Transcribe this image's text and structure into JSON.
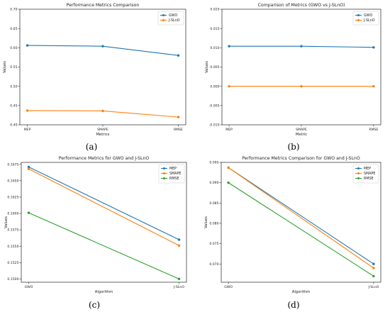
{
  "chart_data": [
    {
      "type": "line",
      "panel": "(a)",
      "title": "Performance Metrics Comparison",
      "xlabel": "Metrics",
      "ylabel": "Values",
      "categories": [
        "MEP",
        "SMAPE",
        "RMSE"
      ],
      "ylim": [
        0.4,
        0.7
      ],
      "yticks": [
        "0.40",
        "0.45",
        "0.50",
        "0.55",
        "0.60",
        "0.65",
        "0.70"
      ],
      "legend": "top-right",
      "grid": false,
      "series": [
        {
          "name": "GWO",
          "color": "#1f77b4",
          "values": [
            0.606,
            0.604,
            0.58
          ]
        },
        {
          "name": "J-SLnO",
          "color": "#ff7f0e",
          "values": [
            0.437,
            0.436,
            0.42
          ]
        }
      ]
    },
    {
      "type": "line",
      "panel": "(b)",
      "title": "Comparison of Metrics (GWO vs J-SLnO)",
      "xlabel": "Metric",
      "ylabel": "Values",
      "categories": [
        "MEP",
        "SMAPE",
        "RMSE"
      ],
      "ylim": [
        -0.01,
        0.02
      ],
      "yticks": [
        "-0.010",
        "-0.005",
        "0.000",
        "0.005",
        "0.010",
        "0.015",
        "0.020"
      ],
      "legend": "top-right",
      "grid": false,
      "series": [
        {
          "name": "GWO",
          "color": "#1f77b4",
          "values": [
            0.0104,
            0.0104,
            0.0101
          ]
        },
        {
          "name": "J-SLnO",
          "color": "#ff7f0e",
          "values": [
            0.0,
            0.0,
            0.0
          ]
        }
      ]
    },
    {
      "type": "line",
      "panel": "(c)",
      "title": "Performance Metrics for GWO and J-SLnO",
      "xlabel": "Algorithm",
      "ylabel": "Values",
      "categories": [
        "GWO",
        "J-SLnO"
      ],
      "ylim": [
        0.1495,
        0.1678
      ],
      "yticks": [
        "0.1500",
        "0.1525",
        "0.1550",
        "0.1575",
        "0.1600",
        "0.1625",
        "0.1650",
        "0.1675"
      ],
      "legend": "top-right",
      "grid": false,
      "series": [
        {
          "name": "MEP",
          "color": "#1f77b4",
          "values": [
            0.1671,
            0.156
          ]
        },
        {
          "name": "SMAPE",
          "color": "#ff7f0e",
          "values": [
            0.1668,
            0.1551
          ]
        },
        {
          "name": "RMSE",
          "color": "#2ca02c",
          "values": [
            0.1601,
            0.15
          ]
        }
      ]
    },
    {
      "type": "line",
      "panel": "(d)",
      "title": "Performance Metrics Comparison for GWO and J-SLnO",
      "xlabel": "Algorithm",
      "ylabel": "Values",
      "categories": [
        "GWO",
        "J-SLnO"
      ],
      "ylim": [
        0.0655,
        0.095
      ],
      "yticks": [
        "0.070",
        "0.075",
        "0.080",
        "0.085",
        "0.090",
        "0.095"
      ],
      "legend": "top-right",
      "grid": false,
      "series": [
        {
          "name": "MEP",
          "color": "#1f77b4",
          "values": [
            0.0937,
            0.07
          ]
        },
        {
          "name": "SMAPE",
          "color": "#ff7f0e",
          "values": [
            0.0937,
            0.069
          ]
        },
        {
          "name": "RMSE",
          "color": "#2ca02c",
          "values": [
            0.09,
            0.067
          ]
        }
      ]
    }
  ]
}
